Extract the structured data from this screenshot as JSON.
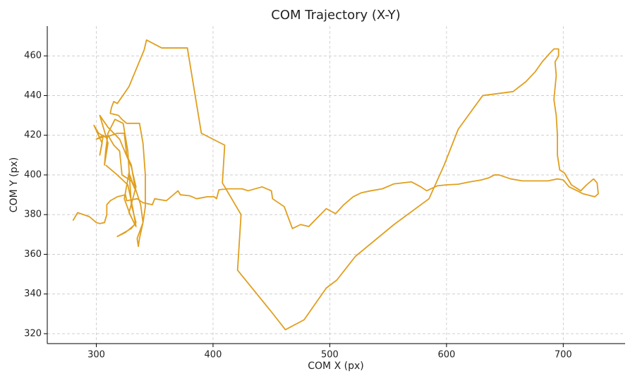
{
  "chart_data": {
    "type": "line",
    "title": "COM Trajectory (X-Y)",
    "x_label": "COM X (px)",
    "y_label": "COM Y (px)",
    "color": "#e09f1f",
    "grid": true,
    "xlim": [
      258,
      753
    ],
    "ylim": [
      315,
      475
    ],
    "xticks": [
      300,
      400,
      500,
      600,
      700
    ],
    "yticks": [
      320,
      340,
      360,
      380,
      400,
      420,
      440,
      460
    ],
    "x": [
      280,
      284,
      294,
      300,
      303,
      307,
      309,
      309,
      312,
      318,
      325,
      326,
      335,
      340,
      348,
      350,
      360,
      370,
      372,
      380,
      386,
      395,
      401,
      403,
      405,
      412,
      425,
      430,
      442,
      450,
      451,
      461,
      468,
      475,
      482,
      497,
      505,
      512,
      520,
      527,
      535,
      545,
      555,
      570,
      578,
      583,
      592,
      600,
      610,
      620,
      630,
      636,
      641,
      645,
      655,
      665,
      672,
      680,
      687,
      695,
      700,
      705,
      712,
      717,
      727,
      730,
      729,
      726,
      720,
      715,
      707,
      701,
      697,
      695,
      695,
      694,
      692,
      694,
      693,
      696,
      696,
      692,
      688,
      682,
      676,
      668,
      657,
      631,
      610,
      598,
      585,
      555,
      522,
      506,
      497,
      478,
      462,
      450,
      421,
      424,
      408,
      410,
      390,
      378,
      356,
      343,
      341,
      328,
      318,
      315,
      313,
      312,
      319,
      322,
      326,
      337,
      340,
      342,
      342,
      340,
      337,
      336,
      335,
      340,
      338,
      333,
      330,
      326,
      324,
      318,
      308,
      302,
      298,
      305,
      303,
      306,
      300,
      310,
      315,
      320,
      322,
      330,
      333,
      328,
      324,
      329,
      333,
      325,
      318,
      330,
      334,
      330,
      327,
      323,
      316,
      310,
      308,
      307,
      310,
      303,
      310,
      320,
      330,
      334,
      328,
      334,
      331,
      327,
      318,
      308
    ],
    "values": [
      377,
      381,
      379,
      376,
      375.5,
      376,
      380,
      385,
      387,
      389,
      390,
      387,
      388,
      386,
      385,
      388,
      387,
      392,
      390,
      389.5,
      388,
      389,
      389,
      388,
      392.5,
      393,
      393,
      392,
      394,
      392,
      388,
      384,
      373,
      375,
      374,
      383,
      380.5,
      385,
      389,
      391,
      392,
      393,
      395.5,
      396.5,
      394,
      392,
      394.5,
      395,
      395.3,
      396.5,
      397.5,
      398.5,
      400,
      400,
      398,
      397,
      397,
      397,
      397,
      398,
      397.5,
      394,
      392,
      390.5,
      389,
      390.5,
      396,
      398,
      395,
      392,
      395,
      401,
      402.5,
      410,
      420,
      430,
      438,
      450,
      457,
      460,
      463.5,
      463.5,
      461,
      457,
      452,
      447,
      442,
      440,
      423,
      405,
      388,
      375,
      359,
      347,
      343,
      327,
      322,
      331,
      352,
      380,
      396,
      415,
      421,
      464,
      464,
      468,
      463,
      444.5,
      436,
      437,
      434,
      431,
      430,
      428,
      426,
      426,
      416,
      400,
      384,
      376,
      368,
      364,
      368,
      376,
      385,
      394,
      405,
      410,
      421,
      421,
      419,
      421,
      425,
      416,
      410,
      420,
      418,
      420,
      415,
      412,
      400,
      397,
      393,
      401,
      388,
      380,
      375,
      371,
      369,
      373,
      376,
      385,
      412,
      426,
      428,
      421,
      412,
      405,
      416,
      430,
      424,
      418,
      404,
      394,
      381,
      374,
      384,
      395,
      400,
      405
    ]
  }
}
